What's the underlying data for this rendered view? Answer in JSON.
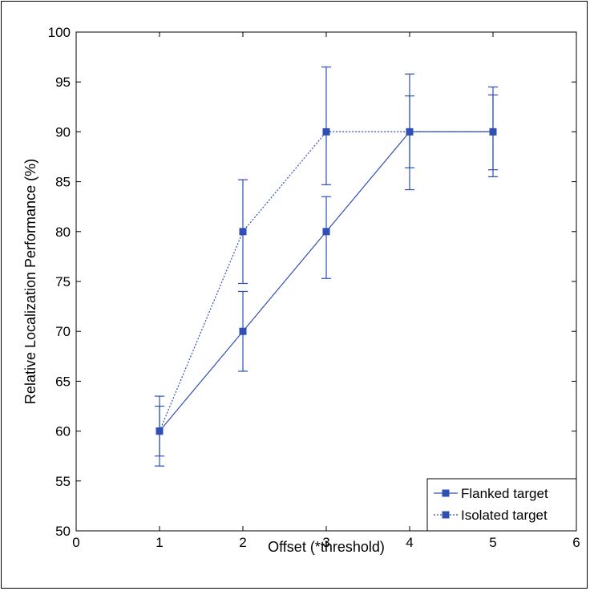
{
  "chart_data": {
    "type": "line",
    "title": "",
    "xlabel": "Offset (*threshold)",
    "ylabel": "Relative Localization Performance (%)",
    "xlim": [
      0,
      6
    ],
    "ylim": [
      50,
      100
    ],
    "xticks": [
      0,
      1,
      2,
      3,
      4,
      5,
      6
    ],
    "yticks": [
      50,
      55,
      60,
      65,
      70,
      75,
      80,
      85,
      90,
      95,
      100
    ],
    "grid": false,
    "legend_position": "bottom-right",
    "series": [
      {
        "name": "Flanked target",
        "line_style": "solid",
        "color": "#2f4fb5",
        "marker": "square",
        "points": [
          {
            "x": 1,
            "y": 60,
            "err_low": 56.5,
            "err_high": 62.5
          },
          {
            "x": 2,
            "y": 70,
            "err_low": 66,
            "err_high": 74
          },
          {
            "x": 3,
            "y": 80,
            "err_low": 75.3,
            "err_high": 83.5
          },
          {
            "x": 4,
            "y": 90,
            "err_low": 86.4,
            "err_high": 93.6
          },
          {
            "x": 5,
            "y": 90,
            "err_low": 86.2,
            "err_high": 93.7
          }
        ]
      },
      {
        "name": "Isolated target",
        "line_style": "dotted",
        "color": "#2f4fb5",
        "marker": "square",
        "points": [
          {
            "x": 1,
            "y": 60,
            "err_low": 57.5,
            "err_high": 63.5
          },
          {
            "x": 2,
            "y": 80,
            "err_low": 74.8,
            "err_high": 85.2
          },
          {
            "x": 3,
            "y": 90,
            "err_low": 84.7,
            "err_high": 96.5
          },
          {
            "x": 4,
            "y": 90,
            "err_low": 84.2,
            "err_high": 95.8
          },
          {
            "x": 5,
            "y": 90,
            "err_low": 85.5,
            "err_high": 94.5
          }
        ]
      }
    ]
  }
}
